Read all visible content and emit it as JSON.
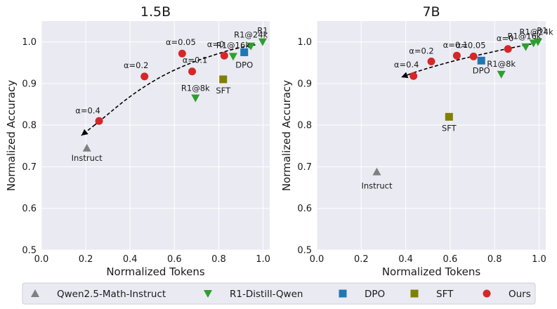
{
  "chart_data": [
    {
      "type": "scatter",
      "title": "1.5B",
      "xlabel": "Normalized Tokens",
      "ylabel": "Normalized Accuracy",
      "xlim": [
        0.0,
        1.03
      ],
      "ylim": [
        0.5,
        1.05
      ],
      "xticks": [
        "0.0",
        "0.2",
        "0.4",
        "0.6",
        "0.8",
        "1.0"
      ],
      "yticks": [
        "0.5",
        "0.6",
        "0.7",
        "0.8",
        "0.9",
        "1.0"
      ],
      "grid": true,
      "series": [
        {
          "name": "Qwen2.5-Math-Instruct",
          "points": [
            {
              "x": 0.205,
              "y": 0.745,
              "label": "Instruct"
            }
          ]
        },
        {
          "name": "R1-Distill-Qwen",
          "points": [
            {
              "x": 0.695,
              "y": 0.865,
              "label": "R1@8k"
            },
            {
              "x": 0.865,
              "y": 0.965,
              "label": "R1@16k"
            },
            {
              "x": 0.945,
              "y": 0.99,
              "label": "R1@24k"
            },
            {
              "x": 0.998,
              "y": 1.0,
              "label": "R1"
            }
          ]
        },
        {
          "name": "DPO",
          "points": [
            {
              "x": 0.915,
              "y": 0.975,
              "label": "DPO"
            }
          ]
        },
        {
          "name": "SFT",
          "points": [
            {
              "x": 0.82,
              "y": 0.91,
              "label": "SFT"
            }
          ]
        },
        {
          "name": "Ours",
          "points": [
            {
              "x": 0.26,
              "y": 0.81,
              "label": "α=0.4"
            },
            {
              "x": 0.465,
              "y": 0.917,
              "label": "α=0.2"
            },
            {
              "x": 0.635,
              "y": 0.972,
              "label": "α=0.05"
            },
            {
              "x": 0.68,
              "y": 0.929,
              "label": "α=0.1"
            },
            {
              "x": 0.825,
              "y": 0.967,
              "label": "α=0"
            }
          ]
        }
      ],
      "trend": [
        [
          0.965,
          0.993
        ],
        [
          0.88,
          0.985
        ],
        [
          0.78,
          0.969
        ],
        [
          0.66,
          0.947
        ],
        [
          0.55,
          0.92
        ],
        [
          0.45,
          0.888
        ],
        [
          0.36,
          0.853
        ],
        [
          0.28,
          0.817
        ],
        [
          0.18,
          0.775
        ]
      ]
    },
    {
      "type": "scatter",
      "title": "7B",
      "xlabel": "Normalized Tokens",
      "ylabel": "Normalized Accuracy",
      "xlim": [
        0.0,
        1.03
      ],
      "ylim": [
        0.5,
        1.05
      ],
      "xticks": [
        "0.0",
        "0.2",
        "0.4",
        "0.6",
        "0.8",
        "1.0"
      ],
      "yticks": [
        "0.5",
        "0.6",
        "0.7",
        "0.8",
        "0.9",
        "1.0"
      ],
      "grid": true,
      "series": [
        {
          "name": "Qwen2.5-Math-Instruct",
          "points": [
            {
              "x": 0.27,
              "y": 0.688,
              "label": "Instruct"
            }
          ]
        },
        {
          "name": "R1-Distill-Qwen",
          "points": [
            {
              "x": 0.83,
              "y": 0.922,
              "label": "R1@8k"
            },
            {
              "x": 0.94,
              "y": 0.988,
              "label": "R1@16k"
            },
            {
              "x": 0.975,
              "y": 0.997,
              "label": "R1@24k"
            },
            {
              "x": 0.995,
              "y": 1.0,
              "label": "R1"
            }
          ]
        },
        {
          "name": "DPO",
          "points": [
            {
              "x": 0.74,
              "y": 0.955,
              "label": "DPO"
            }
          ]
        },
        {
          "name": "SFT",
          "points": [
            {
              "x": 0.595,
              "y": 0.82,
              "label": "SFT"
            }
          ]
        },
        {
          "name": "Ours",
          "points": [
            {
              "x": 0.435,
              "y": 0.918,
              "label": "α=0.4"
            },
            {
              "x": 0.515,
              "y": 0.953,
              "label": "α=0.2"
            },
            {
              "x": 0.63,
              "y": 0.967,
              "label": "α=0.1"
            },
            {
              "x": 0.705,
              "y": 0.965,
              "label": "α=0.05"
            },
            {
              "x": 0.86,
              "y": 0.983,
              "label": "α=0"
            }
          ]
        }
      ],
      "trend": [
        [
          0.965,
          0.995
        ],
        [
          0.86,
          0.984
        ],
        [
          0.74,
          0.97
        ],
        [
          0.62,
          0.955
        ],
        [
          0.52,
          0.94
        ],
        [
          0.44,
          0.927
        ],
        [
          0.38,
          0.915
        ]
      ]
    }
  ],
  "legend": {
    "placement": "bottom",
    "items": [
      {
        "name": "Qwen2.5-Math-Instruct",
        "marker": "triangle-up",
        "color": "#808080"
      },
      {
        "name": "R1-Distill-Qwen",
        "marker": "triangle-down",
        "color": "#008000"
      },
      {
        "name": "DPO",
        "marker": "square",
        "color": "#1f77b4"
      },
      {
        "name": "SFT",
        "marker": "square",
        "color": "#808000"
      },
      {
        "name": "Ours",
        "marker": "circle",
        "color": "#e60000"
      }
    ]
  },
  "colors": {
    "Qwen2.5-Math-Instruct": "#808080",
    "R1-Distill-Qwen": "#2ca02c",
    "DPO": "#1f77b4",
    "SFT": "#808000",
    "Ours": "#d62728",
    "plot_background": "#eaeaf2",
    "grid": "#ffffff"
  }
}
